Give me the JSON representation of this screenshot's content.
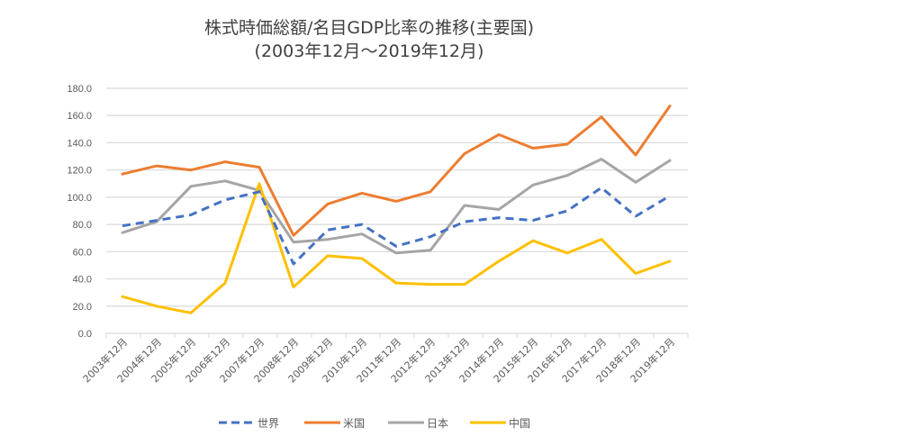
{
  "chart_data": {
    "type": "line",
    "title": "株式時価総額/名目GDP比率の推移(主要国)",
    "subtitle": "(2003年12月～2019年12月)",
    "xlabel": "",
    "ylabel": "",
    "ylim": [
      0,
      180
    ],
    "yticks": [
      "0.0",
      "20.0",
      "40.0",
      "60.0",
      "80.0",
      "100.0",
      "120.0",
      "140.0",
      "160.0",
      "180.0"
    ],
    "grid": true,
    "legend_position": "bottom",
    "categories": [
      "2003年12月",
      "2004年12月",
      "2005年12月",
      "2006年12月",
      "2007年12月",
      "2008年12月",
      "2009年12月",
      "2010年12月",
      "2011年12月",
      "2012年12月",
      "2013年12月",
      "2014年12月",
      "2015年12月",
      "2016年12月",
      "2017年12月",
      "2018年12月",
      "2019年12月"
    ],
    "series": [
      {
        "name": "世界",
        "color": "#4472C4",
        "dashed": true,
        "values": [
          79,
          83,
          87,
          98,
          104,
          51,
          76,
          80,
          64,
          71,
          82,
          85,
          83,
          90,
          107,
          86,
          101
        ]
      },
      {
        "name": "米国",
        "color": "#ED7D31",
        "dashed": false,
        "values": [
          117,
          123,
          120,
          126,
          122,
          72,
          95,
          103,
          97,
          104,
          132,
          146,
          136,
          139,
          159,
          131,
          167
        ]
      },
      {
        "name": "日本",
        "color": "#A5A5A5",
        "dashed": false,
        "values": [
          74,
          82,
          108,
          112,
          105,
          67,
          69,
          73,
          59,
          61,
          94,
          91,
          109,
          116,
          128,
          111,
          127
        ]
      },
      {
        "name": "中国",
        "color": "#FFC000",
        "dashed": false,
        "values": [
          27,
          20,
          15,
          37,
          110,
          34,
          57,
          55,
          37,
          36,
          36,
          53,
          68,
          59,
          69,
          44,
          53
        ]
      }
    ]
  }
}
